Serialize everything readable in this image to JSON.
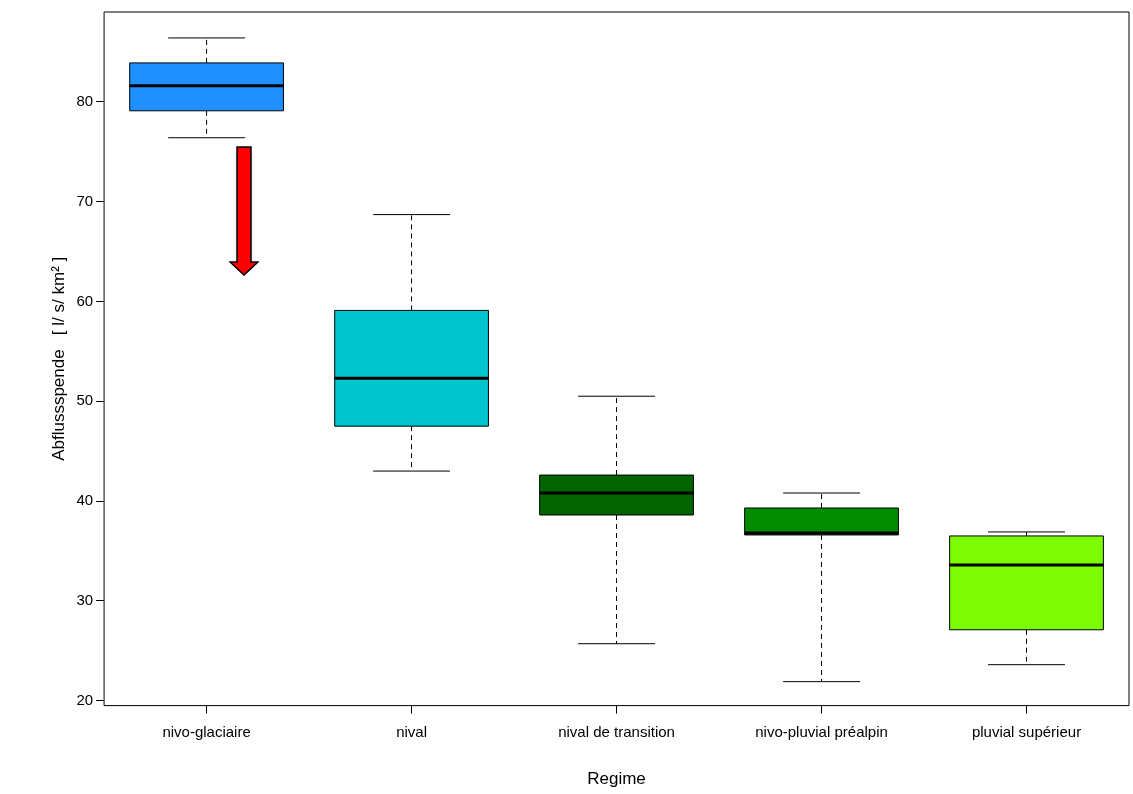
{
  "chart_data": {
    "type": "box",
    "xlabel": "Regime",
    "ylabel": "Abflussspende   [ l/ s/ km² ]",
    "categories": [
      "nivo-glaciaire",
      "nival",
      "nival de transition",
      "nivo-pluvial préalpin",
      "pluvial supérieur"
    ],
    "colors": [
      "#1e90ff",
      "#00c5cd",
      "#006400",
      "#008b00",
      "#7cfc00"
    ],
    "boxes": [
      {
        "low": 76.4,
        "q1": 79.1,
        "median": 81.6,
        "q3": 83.9,
        "high": 86.4
      },
      {
        "low": 43.0,
        "q1": 47.5,
        "median": 52.3,
        "q3": 59.1,
        "high": 68.7
      },
      {
        "low": 25.7,
        "q1": 38.6,
        "median": 40.8,
        "q3": 42.6,
        "high": 50.5
      },
      {
        "low": 21.9,
        "q1": 36.6,
        "median": 36.8,
        "q3": 39.3,
        "high": 40.8
      },
      {
        "low": 23.6,
        "q1": 27.1,
        "median": 33.6,
        "q3": 36.5,
        "high": 36.9
      }
    ],
    "ylim": [
      19.5,
      89
    ],
    "yticks": [
      20,
      30,
      40,
      50,
      60,
      70,
      80
    ],
    "grid": false,
    "legend": false
  }
}
